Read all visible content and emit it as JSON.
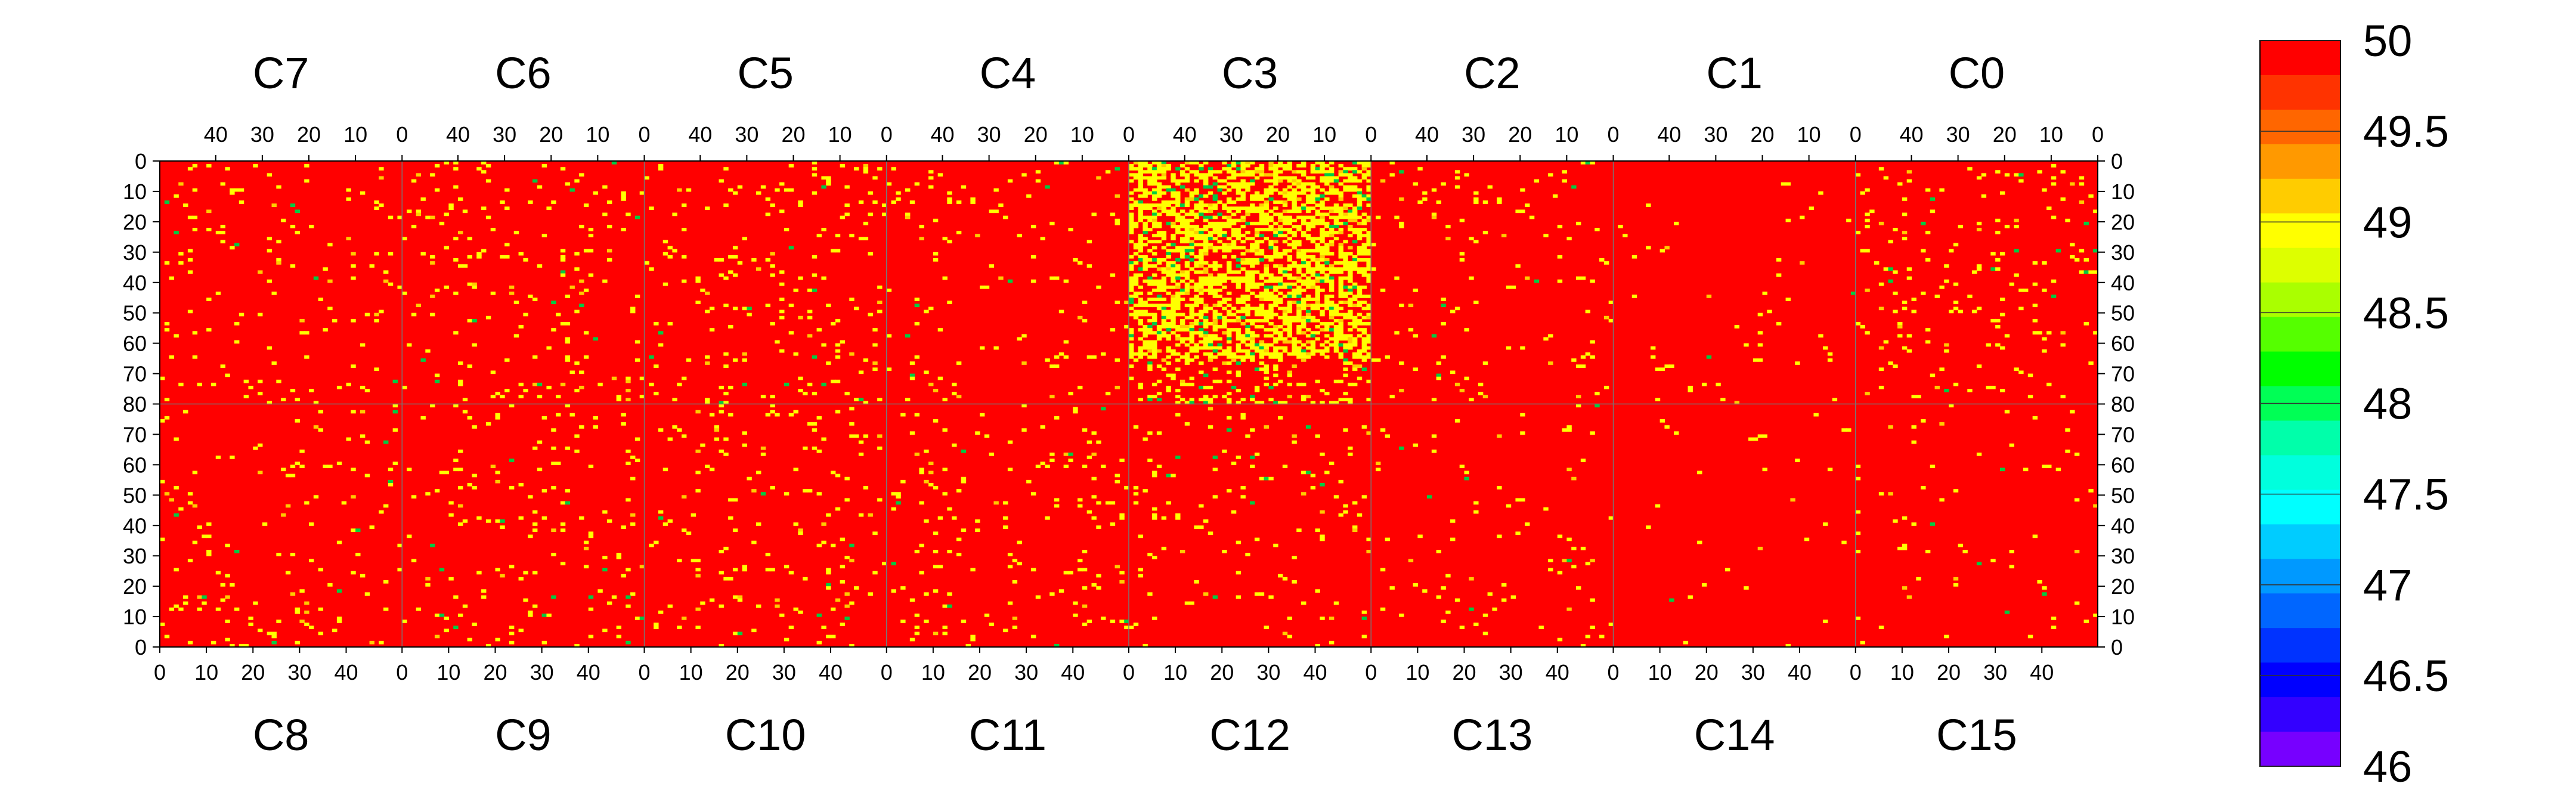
{
  "chart_data": {
    "type": "heatmap",
    "title": "",
    "top_labels": [
      "C7",
      "C6",
      "C5",
      "C4",
      "C3",
      "C2",
      "C1",
      "C0"
    ],
    "bottom_labels": [
      "C8",
      "C9",
      "C10",
      "C11",
      "C12",
      "C13",
      "C14",
      "C15"
    ],
    "top_x_ticks": [
      "40",
      "30",
      "20",
      "10",
      "0"
    ],
    "bottom_x_ticks": [
      "0",
      "10",
      "20",
      "30",
      "40"
    ],
    "y_ticks_top": [
      "0",
      "10",
      "20",
      "30",
      "40",
      "50",
      "60",
      "70",
      "80"
    ],
    "y_ticks_bottom": [
      "70",
      "60",
      "50",
      "40",
      "30",
      "20",
      "10",
      "0"
    ],
    "x_range_per_chip": [
      0,
      52
    ],
    "y_range_per_half": [
      0,
      80
    ],
    "chips_top": [
      {
        "name": "C7",
        "base_value": 50,
        "deviant_fraction": 0.03,
        "hint": "sparse yellow"
      },
      {
        "name": "C6",
        "base_value": 50,
        "deviant_fraction": 0.04,
        "hint": "sparse yellow"
      },
      {
        "name": "C5",
        "base_value": 50,
        "deviant_fraction": 0.04,
        "hint": "sparse yellow"
      },
      {
        "name": "C4",
        "base_value": 50,
        "deviant_fraction": 0.03,
        "hint": "sparse yellow"
      },
      {
        "name": "C3",
        "base_value": 49.2,
        "deviant_fraction": 0.5,
        "hint": "dense yellow, ~49"
      },
      {
        "name": "C2",
        "base_value": 50,
        "deviant_fraction": 0.03,
        "hint": "sparse yellow"
      },
      {
        "name": "C1",
        "base_value": 50,
        "deviant_fraction": 0.01,
        "hint": "very sparse"
      },
      {
        "name": "C0",
        "base_value": 50,
        "deviant_fraction": 0.04,
        "hint": "sparse yellow"
      }
    ],
    "chips_bottom": [
      {
        "name": "C8",
        "base_value": 50,
        "deviant_fraction": 0.03
      },
      {
        "name": "C9",
        "base_value": 50,
        "deviant_fraction": 0.03
      },
      {
        "name": "C10",
        "base_value": 50,
        "deviant_fraction": 0.04
      },
      {
        "name": "C11",
        "base_value": 50,
        "deviant_fraction": 0.03
      },
      {
        "name": "C12",
        "base_value": 50,
        "deviant_fraction": 0.03
      },
      {
        "name": "C13",
        "base_value": 50,
        "deviant_fraction": 0.02
      },
      {
        "name": "C14",
        "base_value": 50,
        "deviant_fraction": 0.005
      },
      {
        "name": "C15",
        "base_value": 50,
        "deviant_fraction": 0.02
      }
    ],
    "color_scale": {
      "min": 46,
      "max": 50,
      "labels": [
        "50",
        "49.5",
        "49",
        "48.5",
        "48",
        "47.5",
        "47",
        "46.5",
        "46"
      ],
      "colors": [
        "#ff0000",
        "#ff3300",
        "#ff6600",
        "#ff9900",
        "#ffcc00",
        "#ffff00",
        "#ddff00",
        "#aaff00",
        "#55ff00",
        "#00ff00",
        "#00ff55",
        "#00ffaa",
        "#00ffdd",
        "#00ffff",
        "#00ccff",
        "#0099ff",
        "#0066ff",
        "#0033ff",
        "#0000ff",
        "#3300ff",
        "#7700ff"
      ]
    },
    "base_color": "#ff0000",
    "deviant_color": "#ffff00",
    "rare_color": "#00cc44",
    "grid": true,
    "legend_position": "right"
  }
}
